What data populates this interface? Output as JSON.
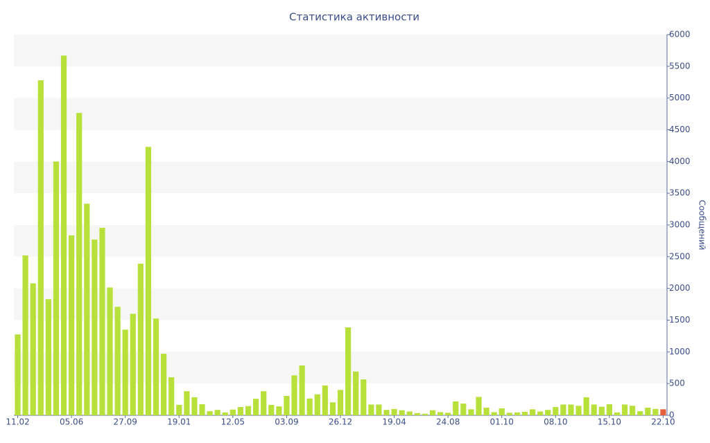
{
  "chart_data": {
    "type": "bar",
    "title": "Статистика активности",
    "y_axis_label": "Сообщений",
    "categories": [
      "11.02",
      null,
      null,
      null,
      null,
      null,
      null,
      "05.06",
      null,
      null,
      null,
      null,
      null,
      null,
      "27.09",
      null,
      null,
      null,
      null,
      null,
      null,
      "19.01",
      null,
      null,
      null,
      null,
      null,
      null,
      "12.05",
      null,
      null,
      null,
      null,
      null,
      null,
      "03.09",
      null,
      null,
      null,
      null,
      null,
      null,
      "26.12",
      null,
      null,
      null,
      null,
      null,
      null,
      "19.04",
      null,
      null,
      null,
      null,
      null,
      null,
      "24.08",
      null,
      null,
      null,
      null,
      null,
      null,
      "01.10",
      null,
      null,
      null,
      null,
      null,
      null,
      "08.10",
      null,
      null,
      null,
      null,
      null,
      null,
      "15.10",
      null,
      null,
      null,
      null,
      null,
      null,
      "22.10"
    ],
    "values": [
      1275,
      2520,
      2080,
      5280,
      1830,
      4000,
      5670,
      2835,
      4765,
      3335,
      2770,
      2955,
      2015,
      1710,
      1350,
      1600,
      2390,
      4230,
      1525,
      970,
      600,
      165,
      380,
      285,
      175,
      65,
      85,
      45,
      90,
      130,
      145,
      260,
      380,
      165,
      140,
      305,
      630,
      785,
      265,
      330,
      470,
      205,
      400,
      1385,
      690,
      565,
      170,
      170,
      85,
      100,
      80,
      60,
      35,
      25,
      80,
      50,
      40,
      220,
      185,
      95,
      290,
      120,
      50,
      110,
      40,
      45,
      55,
      95,
      60,
      85,
      130,
      170,
      170,
      150,
      285,
      170,
      135,
      175,
      45,
      170,
      150,
      65,
      120,
      100,
      95
    ],
    "color": "#b8e03a",
    "last_color": "#e4603a",
    "ylim": [
      0,
      6000
    ],
    "yticks": [
      0,
      500,
      1000,
      1500,
      2000,
      2500,
      3000,
      3500,
      4000,
      4500,
      5000,
      5500,
      6000
    ],
    "grid": true
  }
}
